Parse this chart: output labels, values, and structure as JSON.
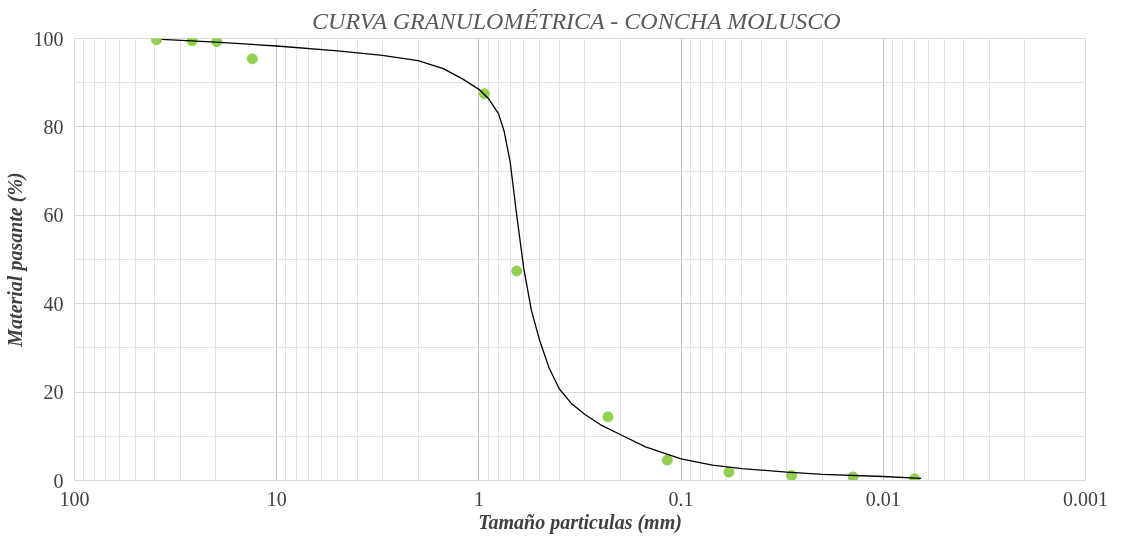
{
  "chart_data": {
    "type": "scatter",
    "title": "CURVA GRANULOMÉTRICA  - CONCHA MOLUSCO",
    "xlabel": "Tamaño particulas (mm)",
    "ylabel": "Material pasante (%)",
    "log": "x",
    "xlim": [
      100,
      0.001
    ],
    "xticks": [
      100,
      10,
      1,
      0.1,
      0.01,
      0.001
    ],
    "ylim": [
      0,
      100
    ],
    "yticks": [
      0,
      20,
      40,
      60,
      80,
      100
    ],
    "grid": true,
    "series": [
      {
        "type": "scatter",
        "color": "#92d050",
        "marker": "circle",
        "x": [
          39.3,
          26.2,
          19.8,
          13.2,
          0.94,
          0.65,
          0.23,
          0.117,
          0.058,
          0.0284,
          0.0141,
          0.007
        ],
        "values": [
          99.7,
          99.5,
          99.3,
          95.4,
          87.5,
          47.4,
          14.4,
          4.6,
          1.9,
          1.1,
          0.8,
          0.4
        ]
      },
      {
        "type": "line",
        "color": "#000000",
        "marker": "none",
        "line_style": "solid",
        "x": [
          37,
          20,
          10,
          5,
          3,
          2,
          1.5,
          1.2,
          1,
          0.9,
          0.8,
          0.75,
          0.7,
          0.65,
          0.6,
          0.55,
          0.5,
          0.45,
          0.4,
          0.35,
          0.3,
          0.25,
          0.2,
          0.15,
          0.1,
          0.07,
          0.05,
          0.03,
          0.02,
          0.01,
          0.0065
        ],
        "values": [
          99.8,
          99.2,
          98.3,
          97.2,
          96.2,
          95,
          93.2,
          90.8,
          88.5,
          86.5,
          83,
          79,
          72,
          60,
          48,
          38.5,
          31.6,
          25.5,
          20.7,
          17.5,
          15,
          12.6,
          10.4,
          7.6,
          4.9,
          3.5,
          2.7,
          1.9,
          1.4,
          0.9,
          0.5
        ]
      }
    ]
  }
}
